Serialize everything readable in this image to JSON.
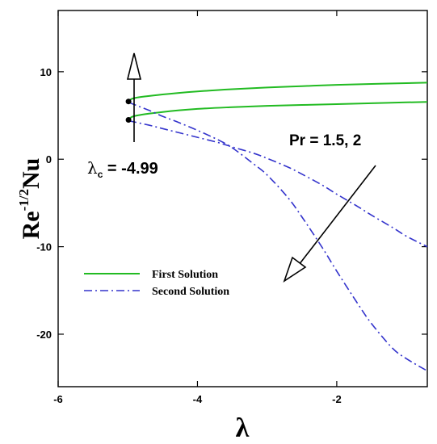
{
  "chart_data": {
    "type": "line",
    "xlabel": "λ",
    "ylabel_base": "Re",
    "ylabel_exp": "-1/2",
    "ylabel_tail": "Nu",
    "xlim": [
      -6,
      -0.7
    ],
    "ylim": [
      -26,
      17
    ],
    "xticks": [
      -6,
      -4,
      -2
    ],
    "yticks": [
      -20,
      -10,
      0,
      10
    ],
    "grid": false,
    "legend_position": "bottom-left",
    "legend": [
      {
        "label": "First Solution",
        "style": "solid",
        "color": "#22bb22"
      },
      {
        "label": "Second Solution",
        "style": "dash-dot",
        "color": "#3333cc"
      }
    ],
    "series": [
      {
        "name": "First Solution",
        "style": "solid",
        "color": "#22bb22",
        "x": [
          -4.99,
          -4.9,
          -4.5,
          -4.0,
          -3.5,
          -3.0,
          -2.5,
          -2.0,
          -1.5,
          -1.0,
          -0.7
        ],
        "y": [
          6.6,
          7.0,
          7.4,
          7.75,
          8.0,
          8.2,
          8.35,
          8.5,
          8.6,
          8.7,
          8.75
        ]
      },
      {
        "name": "First Solution",
        "style": "solid",
        "color": "#22bb22",
        "x": [
          -4.99,
          -4.9,
          -4.5,
          -4.0,
          -3.5,
          -3.0,
          -2.5,
          -2.0,
          -1.5,
          -1.0,
          -0.7
        ],
        "y": [
          4.5,
          4.95,
          5.4,
          5.75,
          5.95,
          6.1,
          6.2,
          6.3,
          6.4,
          6.5,
          6.55
        ]
      },
      {
        "name": "Second Solution",
        "style": "dash-dot",
        "color": "#3333cc",
        "x": [
          -4.99,
          -4.7,
          -4.5,
          -4.3,
          -4.0,
          -3.7,
          -3.5,
          -3.2,
          -3.0,
          -2.7,
          -2.5,
          -2.2,
          -2.0,
          -1.7,
          -1.5,
          -1.2,
          -1.0,
          -0.7
        ],
        "y": [
          6.5,
          5.6,
          4.9,
          4.3,
          3.3,
          2.2,
          1.3,
          -0.5,
          -1.8,
          -4.4,
          -6.6,
          -10.2,
          -12.8,
          -16.5,
          -18.8,
          -21.6,
          -22.8,
          -24.2
        ]
      },
      {
        "name": "Second Solution",
        "style": "dash-dot",
        "color": "#3333cc",
        "x": [
          -4.99,
          -4.7,
          -4.5,
          -4.3,
          -4.0,
          -3.7,
          -3.5,
          -3.2,
          -3.0,
          -2.7,
          -2.5,
          -2.2,
          -2.0,
          -1.7,
          -1.5,
          -1.2,
          -1.0,
          -0.7
        ],
        "y": [
          4.4,
          3.9,
          3.5,
          3.1,
          2.5,
          1.9,
          1.4,
          0.7,
          0.1,
          -0.9,
          -1.7,
          -3.0,
          -4.0,
          -5.4,
          -6.4,
          -7.8,
          -8.8,
          -10.0
        ]
      }
    ],
    "annotations": {
      "critical_label_base": "λ",
      "critical_label_sub": "c",
      "critical_label_value": " = -4.99",
      "critical_x": -4.99,
      "critical_points_y": [
        6.6,
        4.5
      ],
      "pr_label": "Pr = 1.5, 2"
    }
  }
}
